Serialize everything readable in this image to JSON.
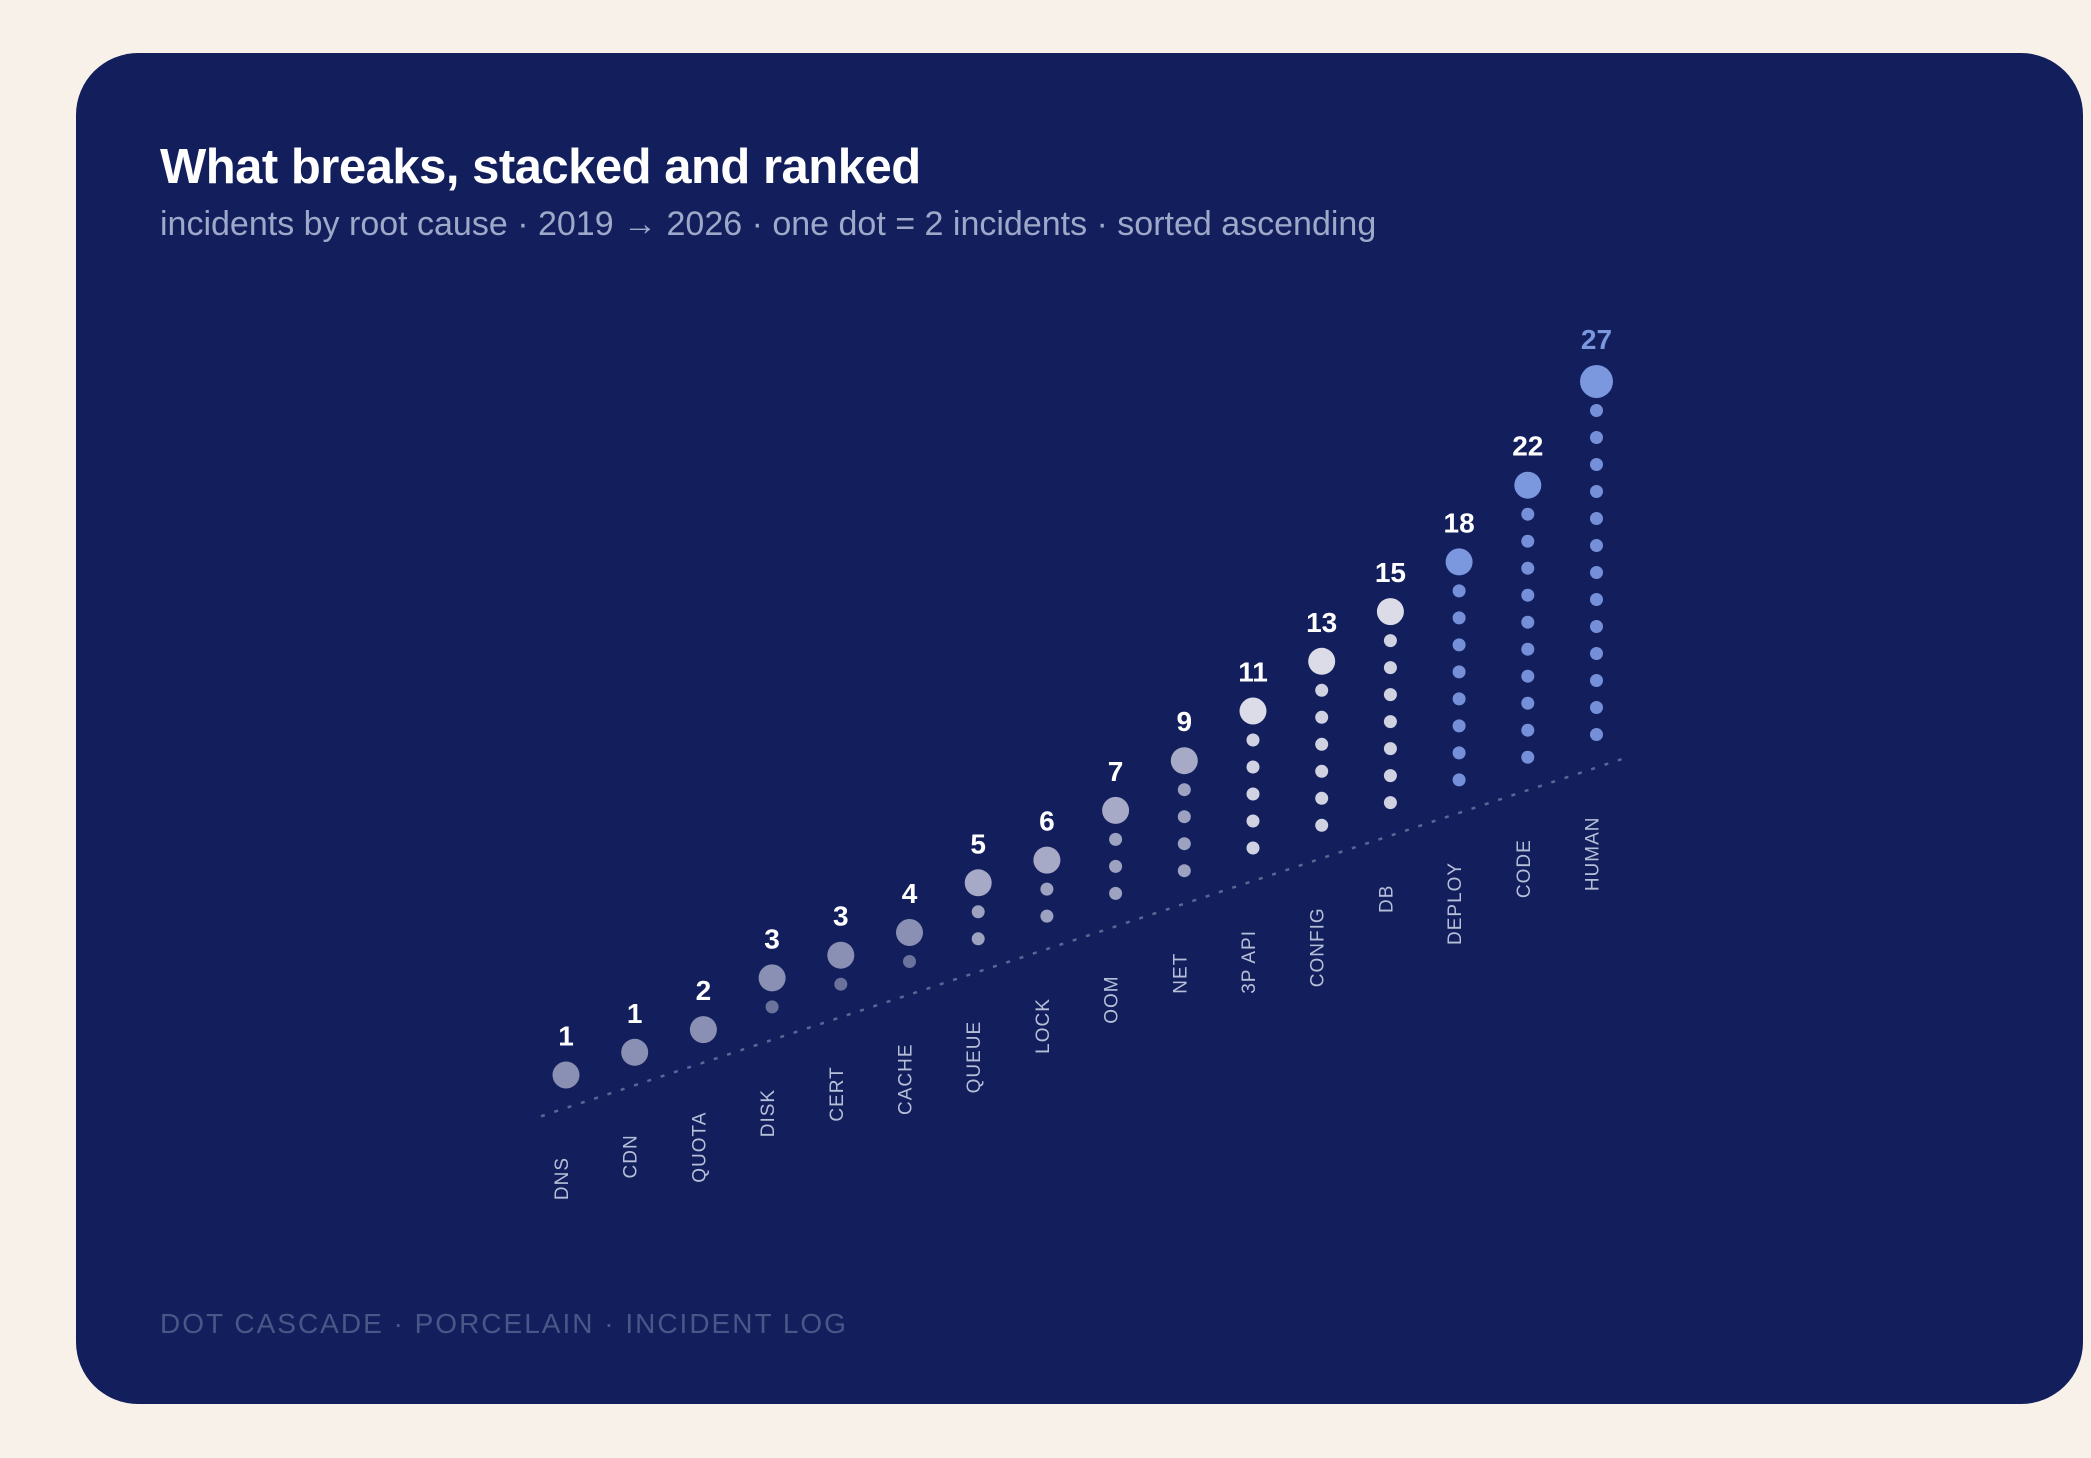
{
  "title": "What breaks, stacked and ranked",
  "subtitle": "incidents by root cause · 2019 → 2026 · one dot = 2 incidents · sorted ascending",
  "footer": "DOT CASCADE · PORCELAIN · INCIDENT LOG",
  "colors": {
    "card": "#121f5c",
    "page": "#f8f1ea",
    "tier_low": "#8a90b3",
    "tier_mid": "#a7aac6",
    "tier_high": "#dcdce8",
    "accent": "#7b97de"
  },
  "chart_data": {
    "type": "dot-stack",
    "unit": "one dot = 2 incidents",
    "sorted": "ascending",
    "categories": [
      "DNS",
      "CDN",
      "QUOTA",
      "DISK",
      "CERT",
      "CACHE",
      "QUEUE",
      "LOCK",
      "OOM",
      "NET",
      "3P API",
      "CONFIG",
      "DB",
      "DEPLOY",
      "CODE",
      "HUMAN"
    ],
    "values": [
      1,
      1,
      2,
      3,
      3,
      4,
      5,
      6,
      7,
      9,
      11,
      13,
      15,
      18,
      22,
      27
    ],
    "highlighted": [
      "DEPLOY",
      "CODE",
      "HUMAN"
    ]
  }
}
